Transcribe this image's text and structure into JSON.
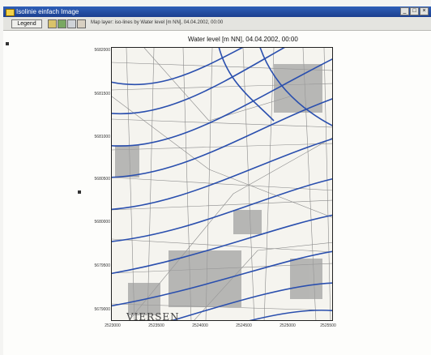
{
  "window": {
    "title": "Isolinie einfach Image",
    "controls": [
      "_",
      "□",
      "×"
    ]
  },
  "toolbar": {
    "legend_label": "Legend",
    "status_text": "Map layer: iso-lines by Water level [m NN], 04.04.2002, 00:00",
    "tools": [
      "zoom-icon",
      "pan-icon",
      "print-icon",
      "help-icon"
    ]
  },
  "map": {
    "title": "Water level [m NN], 04.04.2002, 00:00",
    "y_ticks": [
      "5682000",
      "5681500",
      "5681000",
      "5680500",
      "5680000",
      "5679500",
      "5679000"
    ],
    "x_ticks": [
      "2523000",
      "2523500",
      "2524000",
      "2524500",
      "2525000",
      "2525500"
    ],
    "city_label": "VIERSEN",
    "colors": {
      "isolines": "#2a4fae",
      "basemap": "#6f6f6f",
      "background": "#f5f4ef"
    }
  }
}
